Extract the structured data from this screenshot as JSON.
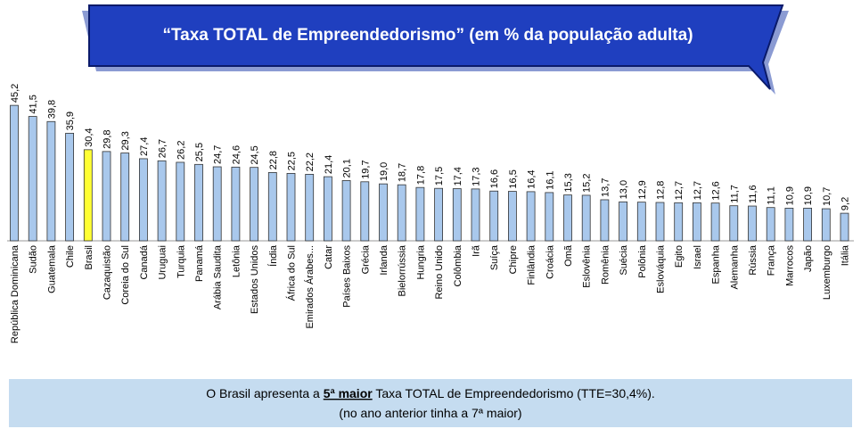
{
  "chart_data": {
    "type": "bar",
    "title": "“Taxa TOTAL de Empreendedorismo” (em % da população adulta)",
    "categories": [
      "República Dominicana",
      "Sudão",
      "Guatemala",
      "Chile",
      "Brasil",
      "Cazaquistão",
      "Coreia do Sul",
      "Canadá",
      "Uruguai",
      "Turquia",
      "Panamá",
      "Arábia Saudita",
      "Letônia",
      "Estados Unidos",
      "Índia",
      "África do Sul",
      "Emirados Árabes...",
      "Catar",
      "Países Baixos",
      "Grécia",
      "Irlanda",
      "Bielorrússia",
      "Hungria",
      "Reino Unido",
      "Colômbia",
      "Irã",
      "Suíça",
      "Chipre",
      "Finlândia",
      "Croácia",
      "Omã",
      "Eslovênia",
      "Romênia",
      "Suécia",
      "Polônia",
      "Eslováquia",
      "Egito",
      "Israel",
      "Espanha",
      "Alemanha",
      "Rússia",
      "França",
      "Marrocos",
      "Japão",
      "Luxemburgo",
      "Itália"
    ],
    "values": [
      45.2,
      41.5,
      39.8,
      35.9,
      30.4,
      29.8,
      29.3,
      27.4,
      26.7,
      26.2,
      25.5,
      24.7,
      24.6,
      24.5,
      22.8,
      22.5,
      22.2,
      21.4,
      20.1,
      19.7,
      19.0,
      18.7,
      17.8,
      17.5,
      17.4,
      17.3,
      16.6,
      16.5,
      16.4,
      16.1,
      15.3,
      15.2,
      13.7,
      13.0,
      12.9,
      12.8,
      12.7,
      12.7,
      12.6,
      11.7,
      11.6,
      11.1,
      10.9,
      10.9,
      10.7,
      9.2
    ],
    "value_labels": [
      "45,2",
      "41,5",
      "39,8",
      "35,9",
      "30,4",
      "29,8",
      "29,3",
      "27,4",
      "26,7",
      "26,2",
      "25,5",
      "24,7",
      "24,6",
      "24,5",
      "22,8",
      "22,5",
      "22,2",
      "21,4",
      "20,1",
      "19,7",
      "19,0",
      "18,7",
      "17,8",
      "17,5",
      "17,4",
      "17,3",
      "16,6",
      "16,5",
      "16,4",
      "16,1",
      "15,3",
      "15,2",
      "13,7",
      "13,0",
      "12,9",
      "12,8",
      "12,7",
      "12,7",
      "12,6",
      "11,7",
      "11,6",
      "11,1",
      "10,9",
      "10,9",
      "10,7",
      "9,2"
    ],
    "color": "#a9c8ec",
    "highlight": {
      "index": 4,
      "color": "#ffff33"
    },
    "note": {
      "before": "O Brasil apresenta a ",
      "emphasis": "5ª maior",
      "after": " Taxa TOTAL de Empreendedorismo (TTE=30,4%).",
      "line2": "(no ano anterior tinha a 7ª maior)"
    }
  }
}
